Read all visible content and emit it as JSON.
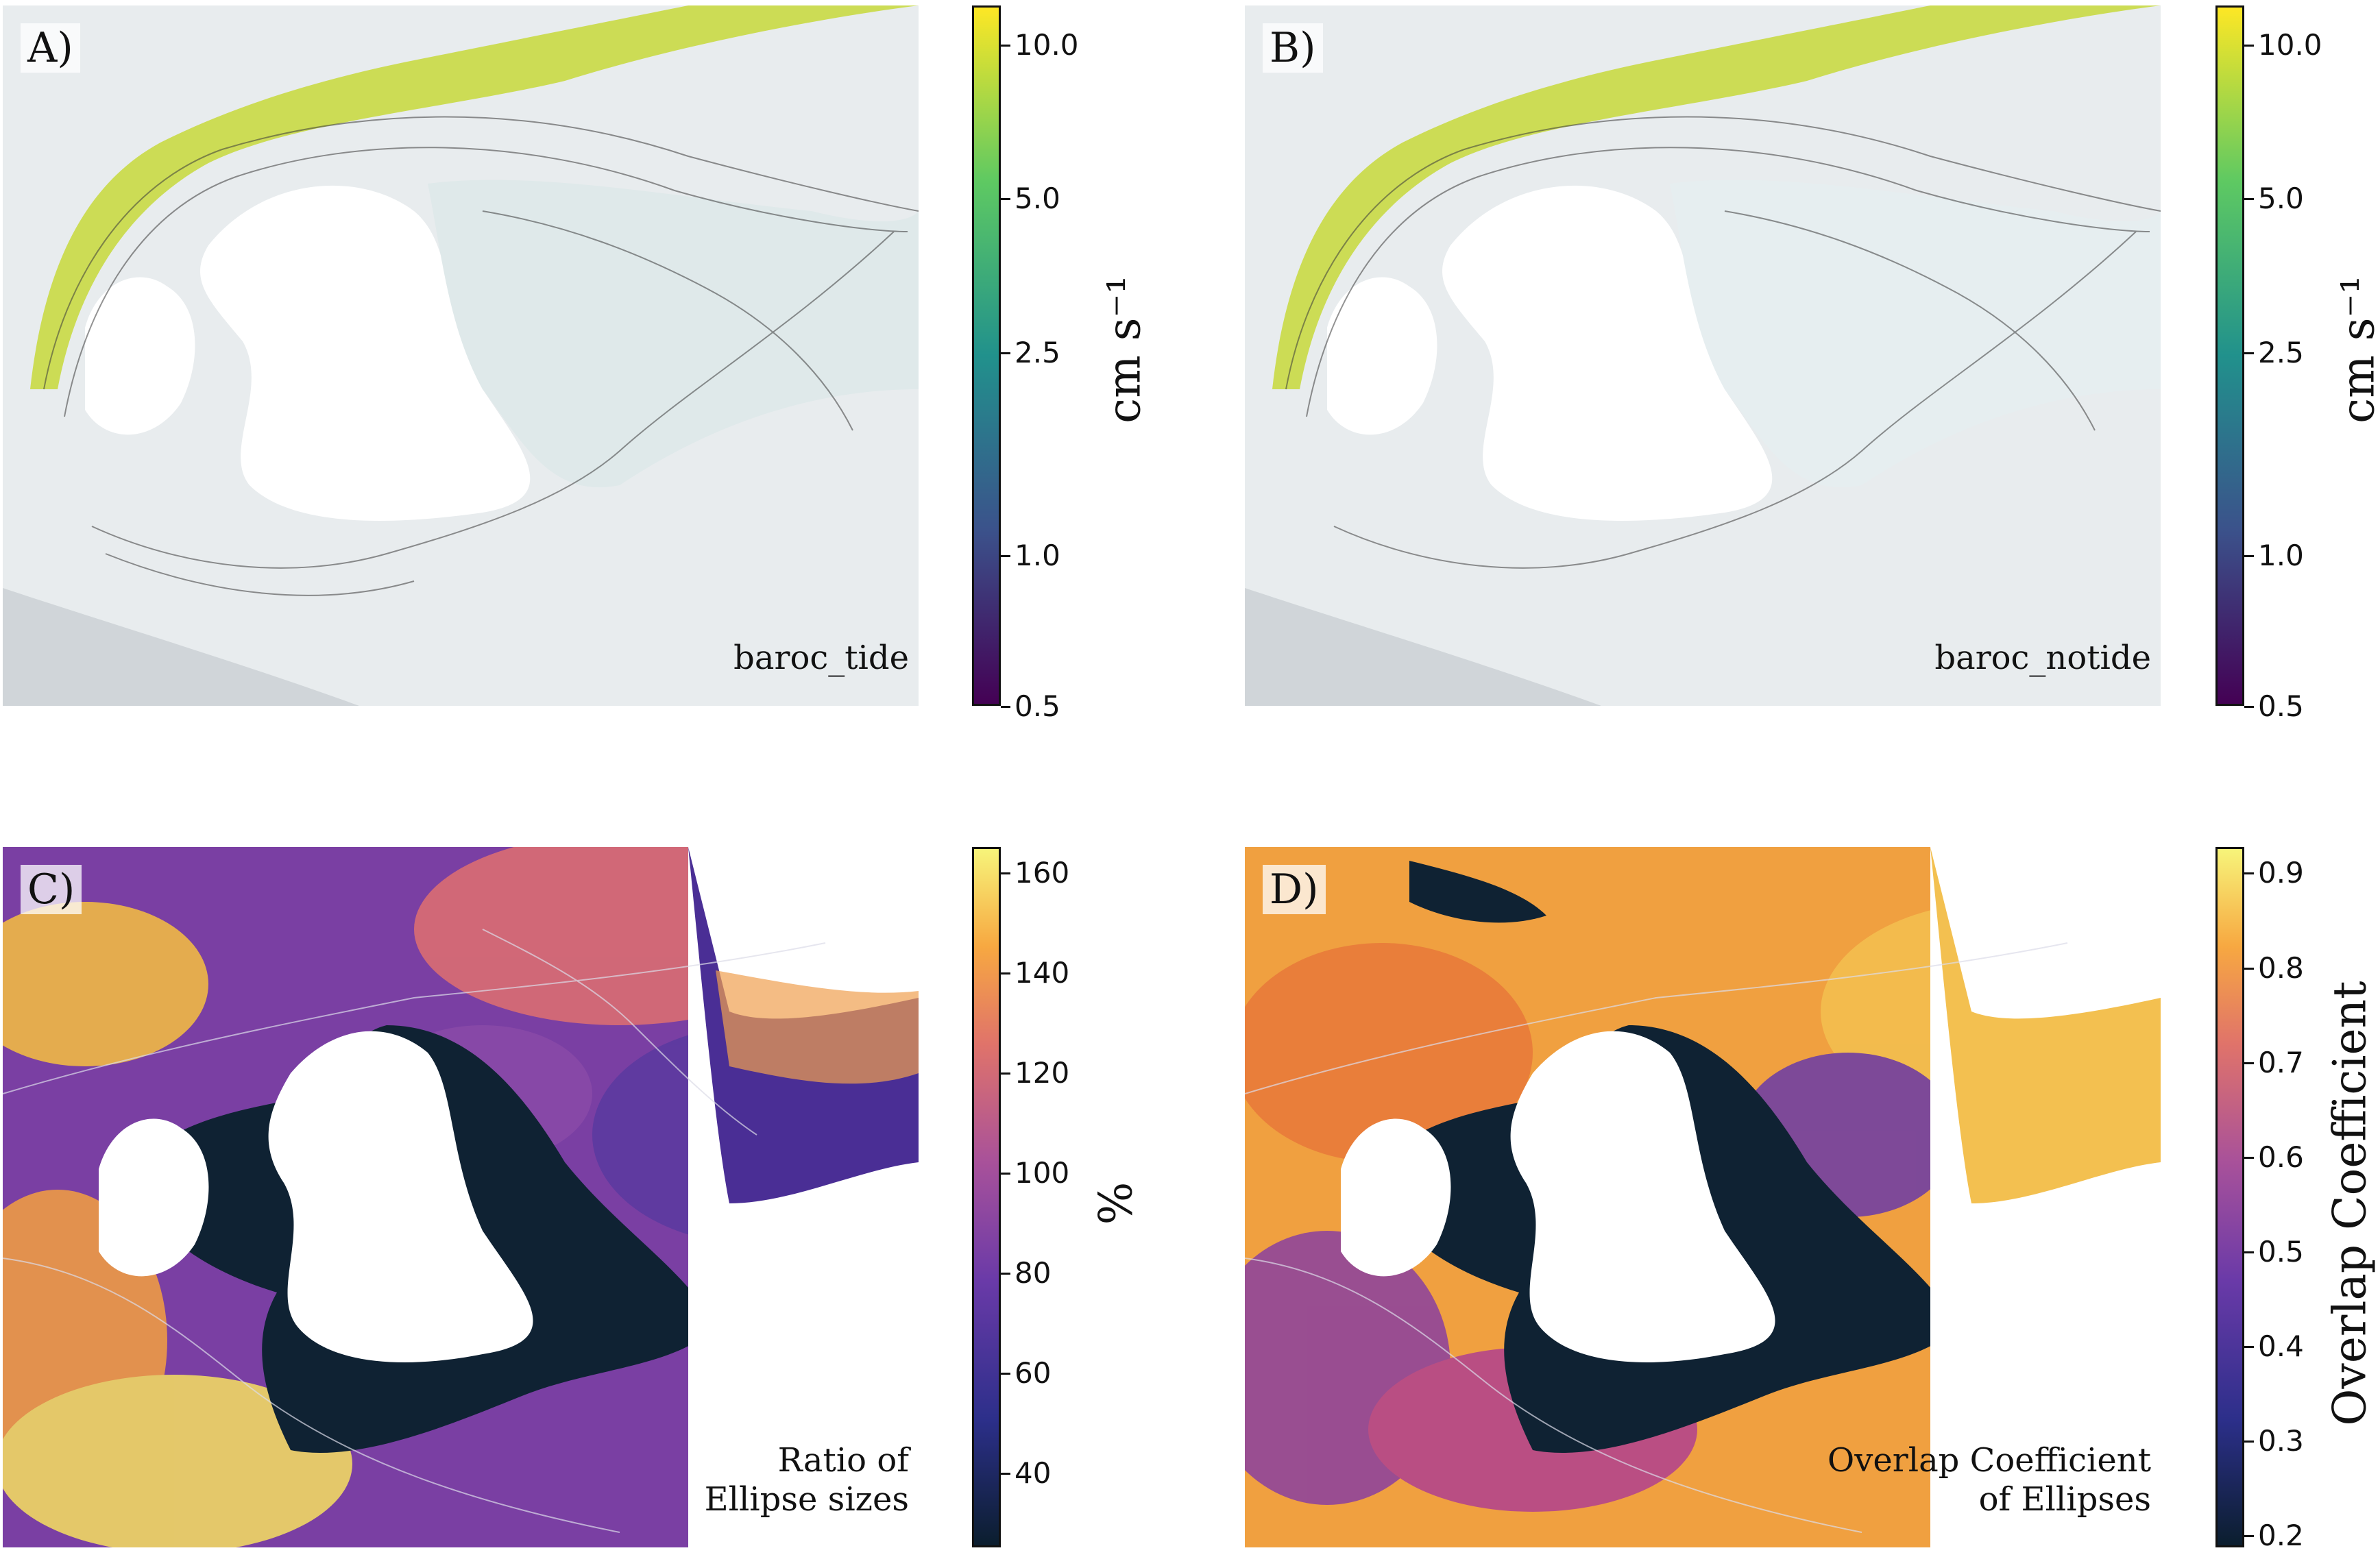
{
  "figure": {
    "panels": [
      {
        "letter": "A)",
        "caption": "baroc_tide",
        "colormap": "viridis",
        "colorbar": {
          "scale": "log",
          "label": "cm s⁻¹",
          "ticks": [
            "10.0",
            "5.0",
            "2.5",
            "1.0",
            "0.5"
          ],
          "range": [
            0.5,
            11
          ]
        }
      },
      {
        "letter": "B)",
        "caption": "baroc_notide",
        "colormap": "viridis",
        "colorbar": {
          "scale": "log",
          "label": "cm s⁻¹",
          "ticks": [
            "10.0",
            "5.0",
            "2.5",
            "1.0",
            "0.5"
          ],
          "range": [
            0.5,
            11
          ]
        }
      },
      {
        "letter": "C)",
        "caption_lines": [
          "Ratio of",
          "Ellipse sizes"
        ],
        "colormap": "plasma-dark",
        "colorbar": {
          "scale": "linear",
          "label": "%",
          "ticks": [
            "160",
            "140",
            "120",
            "100",
            "80",
            "60",
            "40"
          ],
          "range": [
            25,
            165
          ]
        }
      },
      {
        "letter": "D)",
        "caption_lines": [
          "Overlap Coefficient",
          "of Ellipses"
        ],
        "colormap": "plasma-dark",
        "colorbar": {
          "scale": "linear",
          "label": "Overlap Coefficient",
          "ticks": [
            "0.9",
            "0.8",
            "0.7",
            "0.6",
            "0.5",
            "0.4",
            "0.3",
            "0.2"
          ],
          "range": [
            0.17,
            0.92
          ]
        }
      }
    ]
  },
  "chart_data": [
    {
      "type": "heatmap",
      "panel": "A)",
      "title": "baroc_tide",
      "colorbar_label": "cm s⁻¹",
      "scale": "log",
      "vmin": 0.5,
      "vmax": 11,
      "colorbar_ticks": [
        0.5,
        1.0,
        2.5,
        5.0,
        10.0
      ],
      "contours": true
    },
    {
      "type": "heatmap",
      "panel": "B)",
      "title": "baroc_notide",
      "colorbar_label": "cm s⁻¹",
      "scale": "log",
      "vmin": 0.5,
      "vmax": 11,
      "colorbar_ticks": [
        0.5,
        1.0,
        2.5,
        5.0,
        10.0
      ],
      "contours": true
    },
    {
      "type": "heatmap",
      "panel": "C)",
      "title": "Ratio of Ellipse sizes",
      "colorbar_label": "%",
      "scale": "linear",
      "vmin": 25,
      "vmax": 165,
      "colorbar_ticks": [
        40,
        60,
        80,
        100,
        120,
        140,
        160
      ]
    },
    {
      "type": "heatmap",
      "panel": "D)",
      "title": "Overlap Coefficient of Ellipses",
      "colorbar_label": "Overlap Coefficient",
      "scale": "linear",
      "vmin": 0.17,
      "vmax": 0.92,
      "colorbar_ticks": [
        0.2,
        0.3,
        0.4,
        0.5,
        0.6,
        0.7,
        0.8,
        0.9
      ]
    }
  ]
}
